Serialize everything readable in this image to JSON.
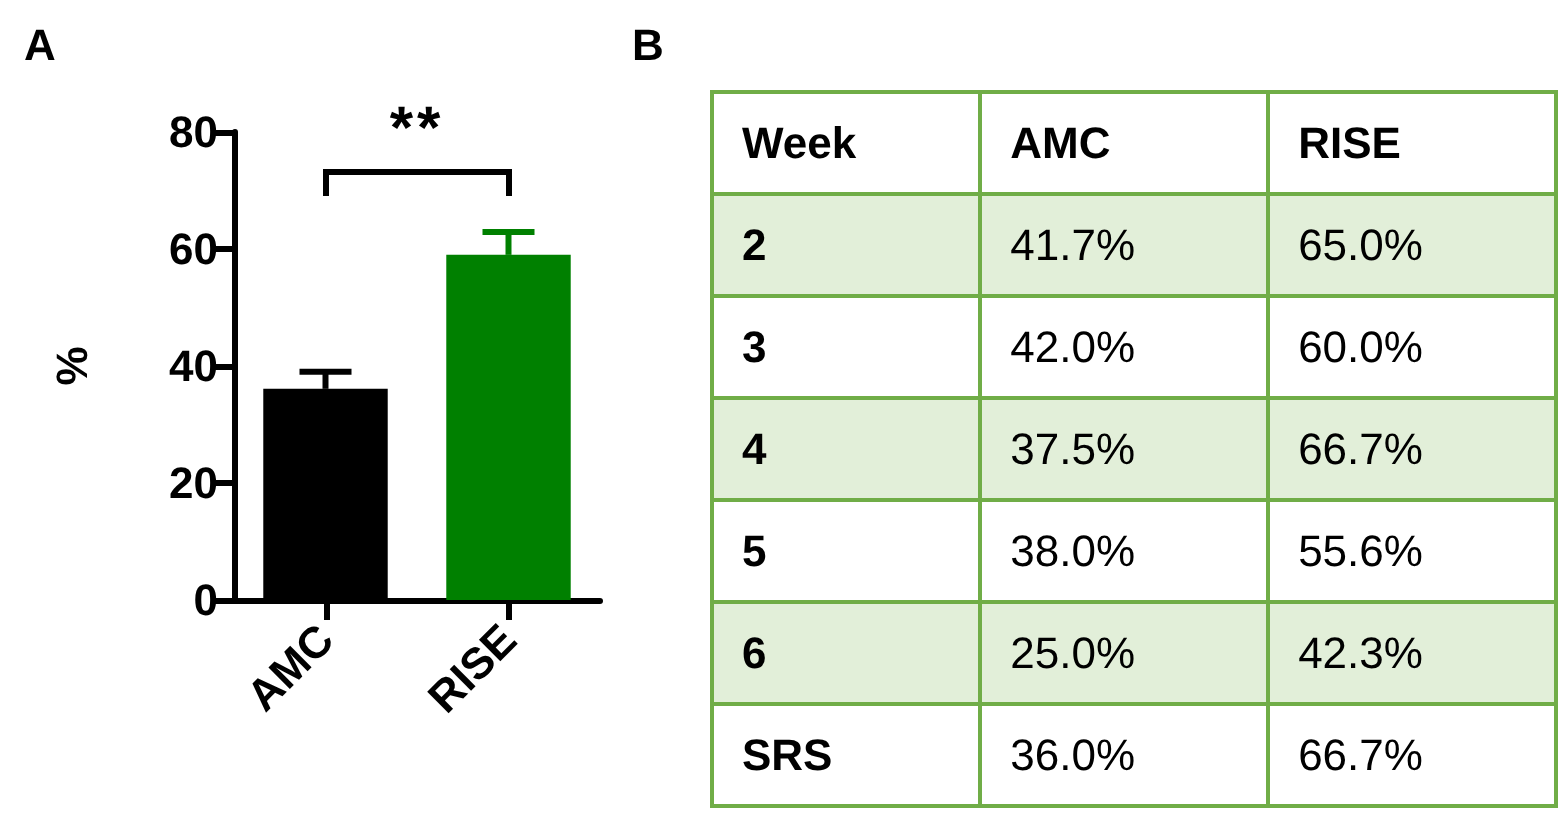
{
  "chart_data": [
    {
      "type": "bar",
      "title": "A",
      "ylabel": "%",
      "categories": [
        "AMC",
        "RISE"
      ],
      "values": [
        36.1,
        59.0
      ],
      "colors": [
        "#000000",
        "#008000"
      ],
      "errors": [
        [
          36.1,
          39.0
        ],
        [
          59.0,
          62.9
        ]
      ],
      "ylim": [
        0,
        80
      ],
      "yticks": [
        0,
        20,
        40,
        60,
        80
      ],
      "grid": false,
      "annotations": [
        "**"
      ]
    },
    {
      "type": "heatmap",
      "title": "B",
      "ylabel": "Week",
      "categories": [
        "AMC",
        "RISE"
      ],
      "y_categories": [
        "2",
        "3",
        "4",
        "5",
        "6",
        "SRS"
      ],
      "cells": [
        [
          41.7,
          65.0
        ],
        [
          42.0,
          60.0
        ],
        [
          37.5,
          66.7
        ],
        [
          38.0,
          55.6
        ],
        [
          25.0,
          42.3
        ],
        [
          36.0,
          66.7
        ]
      ],
      "cell_labels": [
        [
          "41.7%",
          "65.0%"
        ],
        [
          "42.0%",
          "60.0%"
        ],
        [
          "37.5%",
          "66.7%"
        ],
        [
          "38.0%",
          "55.6%"
        ],
        [
          "25.0%",
          "42.3%"
        ],
        [
          "36.0%",
          "66.7%"
        ]
      ]
    }
  ]
}
